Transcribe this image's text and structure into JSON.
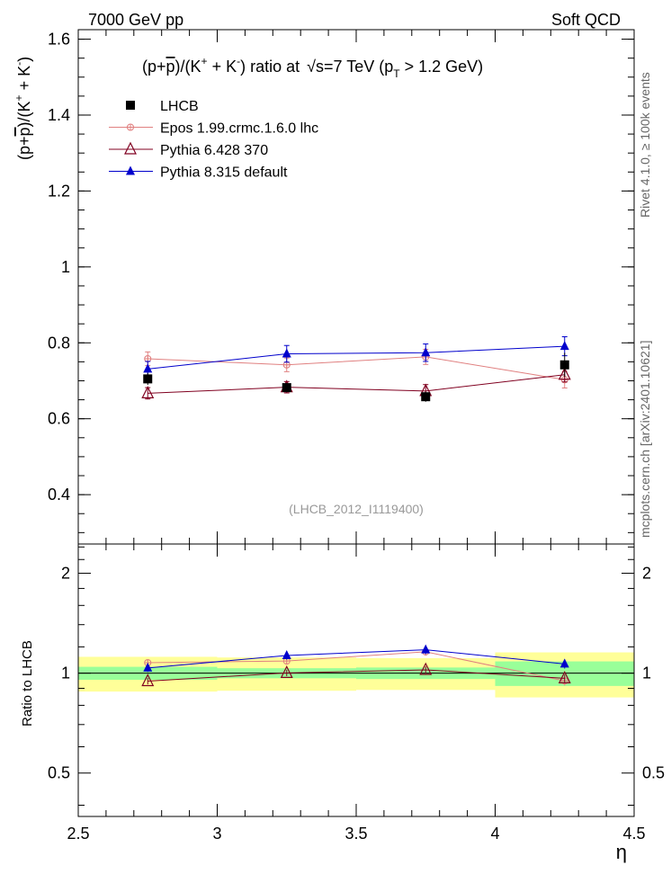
{
  "header": {
    "left": "7000 GeV pp",
    "right": "Soft QCD"
  },
  "side_labels": {
    "rivet": "Rivet 4.1.0, ≥ 100k events",
    "mcplots": "mcplots.cern.ch [arXiv:2401.10621]"
  },
  "analysis_tag": "(LHCB_2012_I1119400)",
  "title": {
    "ratio_prefix": "(p+",
    "pbar": "p",
    "ratio_mid": ")/(K",
    "kplus": "+",
    "plus": " + K",
    "kminus": "-",
    "ratio_suffix": ") ratio at",
    "sqrt": "√",
    "energy": "s=7 TeV (p",
    "sub_t": "T",
    "pt_cut": " > 1.2 GeV)"
  },
  "ylabel_main": {
    "a": "(p+",
    "pbar": "p",
    "b": ")/(K",
    "kplus": "+",
    "c": " + K",
    "kminus": "-",
    "d": ")"
  },
  "ylabel_ratio": "Ratio to LHCB",
  "xlabel": "η",
  "chart_data": {
    "type": "scatter",
    "title": "(p+pbar)/(K+ + K-) ratio at sqrt(s)=7 TeV (pT > 1.2 GeV)",
    "xlabel": "η",
    "ylabel": "(p+pbar)/(K+ + K-)",
    "xlim": [
      2.5,
      4.5
    ],
    "ylim": [
      0.27,
      1.625
    ],
    "x_ticks": [
      2.5,
      3,
      3.5,
      4,
      4.5
    ],
    "x_tick_labels": [
      "2.5",
      "3",
      "3.5",
      "4",
      "4.5"
    ],
    "y_ticks": [
      0.4,
      0.6,
      0.8,
      1,
      1.2,
      1.4,
      1.6
    ],
    "y_tick_labels": [
      "0.4",
      "0.6",
      "0.8",
      "1",
      "1.2",
      "1.4",
      "1.6"
    ],
    "bin_edges": [
      2.5,
      3.0,
      3.5,
      4.0,
      4.5
    ],
    "x": [
      2.75,
      3.25,
      3.75,
      4.25
    ],
    "legend_position": "top-left",
    "data": {
      "name": "LHCB",
      "color": "#000000",
      "values": [
        0.705,
        0.682,
        0.658,
        0.742
      ],
      "stat_rel": [
        0.045,
        0.035,
        0.04,
        0.085
      ],
      "total_rel": [
        0.12,
        0.115,
        0.11,
        0.155
      ]
    },
    "series": [
      {
        "name": "Epos 1.99.crmc.1.6.0 lhc",
        "color": "#e08080",
        "marker": "open-circle-cross",
        "values": [
          0.758,
          0.742,
          0.763,
          0.703
        ],
        "errors": [
          0.018,
          0.018,
          0.02,
          0.022
        ]
      },
      {
        "name": "Pythia 6.428 370",
        "color": "#800020",
        "marker": "open-triangle",
        "values": [
          0.667,
          0.683,
          0.673,
          0.716
        ],
        "errors": [
          0.015,
          0.015,
          0.017,
          0.019
        ]
      },
      {
        "name": "Pythia 8.315 default",
        "color": "#0000cc",
        "marker": "filled-triangle",
        "values": [
          0.731,
          0.771,
          0.774,
          0.791
        ],
        "errors": [
          0.02,
          0.022,
          0.023,
          0.025
        ]
      }
    ],
    "ratio_panel": {
      "ylabel": "Ratio to LHCB",
      "ylim": [
        0.37,
        2.45
      ],
      "y_ticks": [
        0.5,
        1,
        2
      ],
      "y_tick_labels": [
        "0.5",
        "1",
        "2"
      ],
      "band_colors": {
        "stat": "#99ff99",
        "total": "#ffff99"
      }
    },
    "grid": false
  }
}
